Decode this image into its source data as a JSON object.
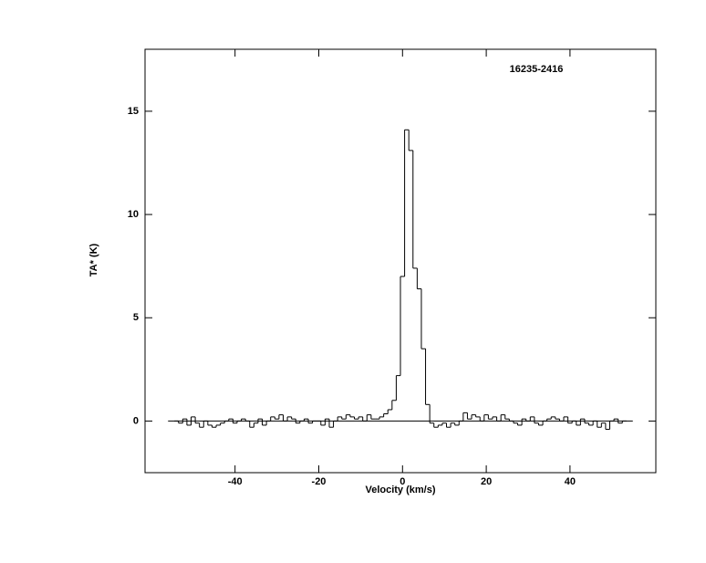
{
  "chart_data": {
    "type": "step",
    "annotation": "16235-2416",
    "xlabel": "Velocity (km/s)",
    "ylabel": "TA* (K)",
    "xlim": [
      -61.5,
      60.5
    ],
    "ylim": [
      -2.5,
      18
    ],
    "xticks": [
      -40,
      -20,
      0,
      20,
      40
    ],
    "yticks": [
      0,
      5,
      10,
      15
    ],
    "hlines": [
      0
    ],
    "color": "#000000",
    "x": [
      -54,
      -53,
      -52,
      -51,
      -50,
      -49,
      -48,
      -47,
      -46,
      -45,
      -44,
      -43,
      -42,
      -41,
      -40,
      -39,
      -38,
      -37,
      -36,
      -35,
      -34,
      -33,
      -32,
      -31,
      -30,
      -29,
      -28,
      -27,
      -26,
      -25,
      -24,
      -23,
      -22,
      -21,
      -20,
      -19,
      -18,
      -17,
      -16,
      -15,
      -14,
      -13,
      -12,
      -11,
      -10,
      -9,
      -8,
      -7,
      -6,
      -5,
      -4,
      -3,
      -2,
      -1,
      0,
      1,
      2,
      3,
      4,
      5,
      6,
      7,
      8,
      9,
      10,
      11,
      12,
      13,
      14,
      15,
      16,
      17,
      18,
      19,
      20,
      21,
      22,
      23,
      24,
      25,
      26,
      27,
      28,
      29,
      30,
      31,
      32,
      33,
      34,
      35,
      36,
      37,
      38,
      39,
      40,
      41,
      42,
      43,
      44,
      45,
      46,
      47,
      48,
      49,
      50,
      51,
      52,
      53
    ],
    "values": [
      0.0,
      -0.1,
      0.1,
      -0.2,
      0.2,
      -0.1,
      -0.3,
      0.0,
      -0.2,
      -0.3,
      -0.2,
      -0.1,
      0.0,
      0.1,
      -0.1,
      0.0,
      0.1,
      0.0,
      -0.3,
      -0.1,
      0.1,
      -0.2,
      0.0,
      0.2,
      0.1,
      0.3,
      0.0,
      0.2,
      0.1,
      -0.1,
      0.0,
      0.1,
      -0.1,
      0.0,
      0.0,
      -0.2,
      0.1,
      -0.3,
      0.0,
      0.2,
      0.1,
      0.3,
      0.2,
      0.1,
      0.2,
      0.0,
      0.3,
      0.1,
      0.1,
      0.2,
      0.35,
      0.55,
      1.0,
      2.2,
      7.0,
      14.1,
      13.1,
      7.4,
      6.4,
      3.5,
      0.8,
      -0.1,
      -0.3,
      -0.2,
      -0.1,
      -0.3,
      -0.1,
      -0.2,
      0.0,
      0.4,
      0.1,
      0.3,
      0.2,
      0.0,
      0.3,
      0.1,
      0.2,
      0.0,
      0.3,
      0.1,
      0.0,
      -0.1,
      -0.2,
      0.1,
      0.0,
      0.2,
      -0.1,
      -0.2,
      0.0,
      0.1,
      0.2,
      0.1,
      0.0,
      0.2,
      -0.1,
      0.0,
      -0.2,
      0.1,
      -0.1,
      -0.2,
      0.0,
      -0.3,
      -0.1,
      -0.4,
      0.0,
      0.1,
      -0.1,
      0.0
    ]
  }
}
